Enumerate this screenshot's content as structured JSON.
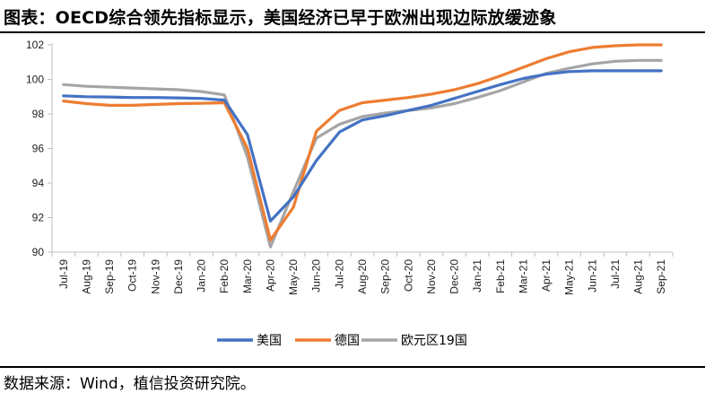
{
  "title": "图表：OECD综合领先指标显示，美国经济已早于欧洲出现边际放缓迹象",
  "source": "数据来源：Wind，植信投资研究院。",
  "chart_data": {
    "type": "line",
    "title": "",
    "xlabel": "",
    "ylabel": "",
    "ylim": [
      90,
      102
    ],
    "yticks": [
      90,
      92,
      94,
      96,
      98,
      100,
      102
    ],
    "grid": false,
    "legend": "bottom",
    "categories": [
      "Jul-19",
      "Aug-19",
      "Sep-19",
      "Oct-19",
      "Nov-19",
      "Dec-19",
      "Jan-20",
      "Feb-20",
      "Mar-20",
      "Apr-20",
      "May-20",
      "Jun-20",
      "Jul-20",
      "Aug-20",
      "Sep-20",
      "Oct-20",
      "Nov-20",
      "Dec-20",
      "Jan-21",
      "Feb-21",
      "Mar-21",
      "Apr-21",
      "May-21",
      "Jun-21",
      "Jul-21",
      "Aug-21",
      "Sep-21"
    ],
    "series": [
      {
        "name": "美国",
        "color": "#4472C4",
        "values": [
          99.05,
          99.0,
          98.98,
          98.95,
          98.95,
          98.93,
          98.9,
          98.8,
          96.8,
          91.8,
          93.2,
          95.3,
          96.95,
          97.65,
          97.9,
          98.2,
          98.5,
          98.9,
          99.3,
          99.7,
          100.05,
          100.3,
          100.45,
          100.5,
          100.5,
          100.5,
          100.5
        ]
      },
      {
        "name": "德国",
        "color": "#ED7D31",
        "values": [
          98.75,
          98.6,
          98.5,
          98.5,
          98.55,
          98.6,
          98.62,
          98.65,
          96.0,
          90.7,
          92.6,
          97.0,
          98.2,
          98.65,
          98.8,
          98.95,
          99.15,
          99.4,
          99.75,
          100.2,
          100.7,
          101.2,
          101.6,
          101.85,
          101.95,
          102.0,
          102.0
        ]
      },
      {
        "name": "欧元区19国",
        "color": "#A5A5A5",
        "values": [
          99.7,
          99.6,
          99.55,
          99.5,
          99.45,
          99.4,
          99.3,
          99.1,
          95.5,
          90.3,
          93.5,
          96.6,
          97.4,
          97.85,
          98.05,
          98.2,
          98.35,
          98.6,
          98.95,
          99.35,
          99.85,
          100.35,
          100.65,
          100.9,
          101.05,
          101.1,
          101.1
        ]
      }
    ]
  }
}
